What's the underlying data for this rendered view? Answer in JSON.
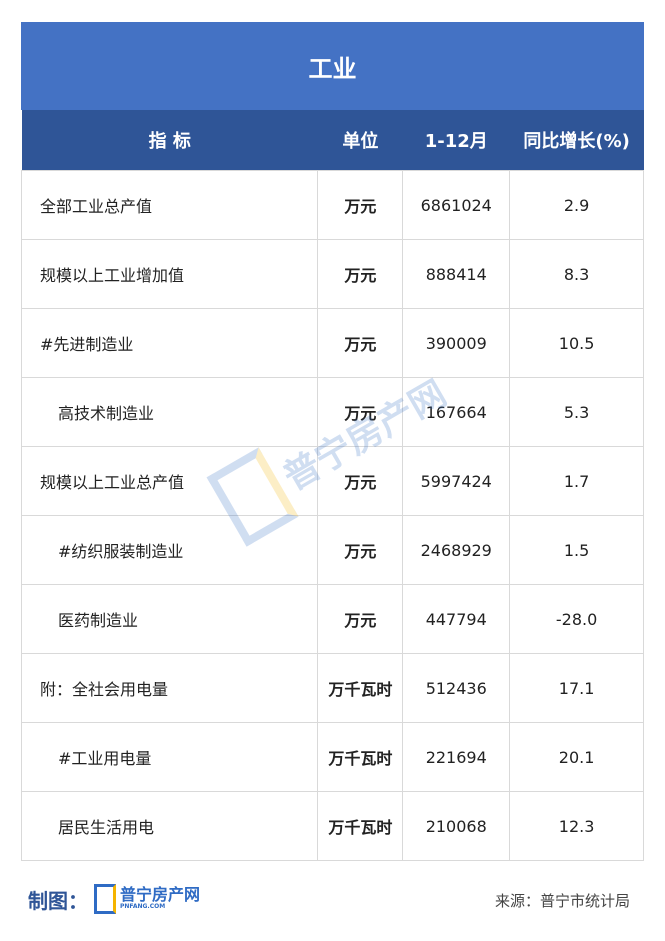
{
  "title": "工业",
  "headers": [
    "指 标",
    "单位",
    "1-12月",
    "同比增长(%)"
  ],
  "rows": [
    {
      "name": "全部工业总产值",
      "unit": "万元",
      "value": "6861024",
      "growth": "2.9",
      "indent": false
    },
    {
      "name": "规模以上工业增加值",
      "unit": "万元",
      "value": "888414",
      "growth": "8.3",
      "indent": false
    },
    {
      "name": "#先进制造业",
      "unit": "万元",
      "value": "390009",
      "growth": "10.5",
      "indent": false
    },
    {
      "name": "高技术制造业",
      "unit": "万元",
      "value": "167664",
      "growth": "5.3",
      "indent": true
    },
    {
      "name": "规模以上工业总产值",
      "unit": "万元",
      "value": "5997424",
      "growth": "1.7",
      "indent": false
    },
    {
      "name": "#纺织服装制造业",
      "unit": "万元",
      "value": "2468929",
      "growth": "1.5",
      "indent": true
    },
    {
      "name": "医药制造业",
      "unit": "万元",
      "value": "447794",
      "growth": "-28.0",
      "indent": true
    },
    {
      "name": "附：全社会用电量",
      "unit": "万千瓦时",
      "value": "512436",
      "growth": "17.1",
      "indent": false
    },
    {
      "name": "#工业用电量",
      "unit": "万千瓦时",
      "value": "221694",
      "growth": "20.1",
      "indent": true
    },
    {
      "name": "居民生活用电",
      "unit": "万千瓦时",
      "value": "210068",
      "growth": "12.3",
      "indent": true
    }
  ],
  "footer": {
    "made_by_label": "制图：",
    "logo_name": "普宁房产网",
    "logo_domain": "PNFANG.COM",
    "source": "来源：普宁市统计局"
  },
  "watermark": {
    "text": "普宁房产网",
    "domain": "PNFANG.COM"
  },
  "colors": {
    "title_bg": "#4472c4",
    "header_bg": "#2f5597"
  }
}
